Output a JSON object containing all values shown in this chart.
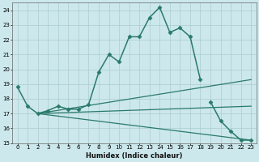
{
  "xlabel": "Humidex (Indice chaleur)",
  "background_color": "#cce8ec",
  "line_color": "#2a7a6a",
  "grid_color": "#aaccd0",
  "xlim": [
    -0.5,
    23.5
  ],
  "ylim": [
    15,
    24.5
  ],
  "yticks": [
    15,
    16,
    17,
    18,
    19,
    20,
    21,
    22,
    23,
    24
  ],
  "xticks": [
    0,
    1,
    2,
    3,
    4,
    5,
    6,
    7,
    8,
    9,
    10,
    11,
    12,
    13,
    14,
    15,
    16,
    17,
    18,
    19,
    20,
    21,
    22,
    23
  ],
  "series": [
    {
      "x": [
        0,
        1,
        2,
        3,
        4,
        5,
        6,
        7,
        8,
        9,
        10,
        11,
        12,
        13,
        14,
        15,
        16,
        17,
        18
      ],
      "y": [
        18.8,
        17.5,
        17.0,
        17.2,
        17.5,
        17.3,
        17.3,
        17.6,
        19.8,
        21.0,
        20.5,
        22.2,
        22.2,
        23.5,
        24.2,
        22.5,
        22.8,
        22.2,
        19.3
      ],
      "marker": "D",
      "markersize": 2.5,
      "linewidth": 1.1
    },
    {
      "x": [
        19,
        20,
        21,
        22,
        23
      ],
      "y": [
        17.8,
        16.5,
        15.8,
        15.2,
        15.2
      ],
      "marker": "D",
      "markersize": 2.5,
      "linewidth": 1.1
    },
    {
      "x": [
        2,
        23
      ],
      "y": [
        17.0,
        19.3
      ],
      "marker": null,
      "markersize": 0,
      "linewidth": 0.9
    },
    {
      "x": [
        2,
        23
      ],
      "y": [
        17.0,
        17.5
      ],
      "marker": null,
      "markersize": 0,
      "linewidth": 0.9
    },
    {
      "x": [
        2,
        23
      ],
      "y": [
        17.0,
        15.2
      ],
      "marker": null,
      "markersize": 0,
      "linewidth": 0.9
    }
  ]
}
